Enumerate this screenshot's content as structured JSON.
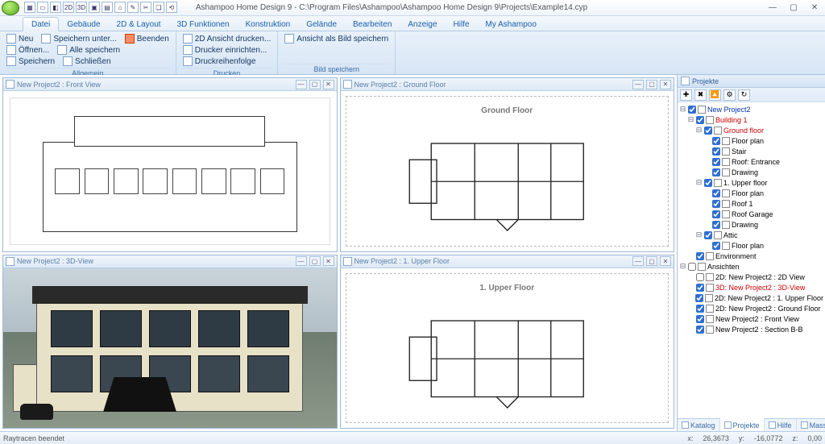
{
  "window": {
    "title": "Ashampoo Home Design 9 - C:\\Program Files\\Ashampoo\\Ashampoo Home Design 9\\Projects\\Example14.cyp"
  },
  "tabs": [
    "Datei",
    "Gebäude",
    "2D & Layout",
    "3D Funktionen",
    "Konstruktion",
    "Gelände",
    "Bearbeiten",
    "Anzeige",
    "Hilfe",
    "My Ashampoo"
  ],
  "active_tab_index": 0,
  "ribbon": {
    "groups": [
      {
        "label": "Allgemein",
        "rows": [
          [
            {
              "t": "Neu"
            },
            {
              "t": "Speichern unter..."
            },
            {
              "t": "Beenden",
              "red": true
            }
          ],
          [
            {
              "t": "Öffnen..."
            },
            {
              "t": "Alle speichern"
            }
          ],
          [
            {
              "t": "Speichern"
            },
            {
              "t": "Schließen"
            }
          ]
        ]
      },
      {
        "label": "Drucken",
        "rows": [
          [
            {
              "t": "2D Ansicht drucken..."
            }
          ],
          [
            {
              "t": "Drucker einrichten..."
            }
          ],
          [
            {
              "t": "Druckreihenfolge"
            }
          ]
        ]
      },
      {
        "label": "Bild speichern",
        "rows": [
          [
            {
              "t": "Ansicht als Bild speichern"
            }
          ]
        ]
      }
    ]
  },
  "views": [
    {
      "title": "New Project2 : Front View",
      "kind": "elevation"
    },
    {
      "title": "New Project2 : Ground Floor",
      "kind": "plan",
      "plan_title": "Ground Floor"
    },
    {
      "title": "New Project2 : 3D-View",
      "kind": "render"
    },
    {
      "title": "New Project2 : 1. Upper Floor",
      "kind": "plan",
      "plan_title": "1. Upper Floor"
    }
  ],
  "side": {
    "title": "Projekte",
    "toolbar_icons": [
      "✚",
      "✖",
      "🔼",
      "⚙",
      "↻"
    ],
    "tree": [
      {
        "d": 0,
        "l": "New Project2",
        "cls": "root",
        "c": true,
        "tw": "⊟"
      },
      {
        "d": 1,
        "l": "Building 1",
        "cls": "red",
        "c": true,
        "tw": "⊟"
      },
      {
        "d": 2,
        "l": "Ground floor",
        "cls": "red",
        "c": true,
        "tw": "⊟"
      },
      {
        "d": 3,
        "l": "Floor plan",
        "c": true,
        "tw": ""
      },
      {
        "d": 3,
        "l": "Stair",
        "c": true,
        "tw": ""
      },
      {
        "d": 3,
        "l": "Roof: Entrance",
        "c": true,
        "tw": ""
      },
      {
        "d": 3,
        "l": "Drawing",
        "c": true,
        "tw": ""
      },
      {
        "d": 2,
        "l": "1. Upper floor",
        "c": true,
        "tw": "⊟"
      },
      {
        "d": 3,
        "l": "Floor plan",
        "c": true,
        "tw": ""
      },
      {
        "d": 3,
        "l": "Roof 1",
        "c": true,
        "tw": ""
      },
      {
        "d": 3,
        "l": "Roof Garage",
        "c": true,
        "tw": ""
      },
      {
        "d": 3,
        "l": "Drawing",
        "c": true,
        "tw": ""
      },
      {
        "d": 2,
        "l": "Attic",
        "c": true,
        "tw": "⊟"
      },
      {
        "d": 3,
        "l": "Floor plan",
        "c": true,
        "tw": ""
      },
      {
        "d": 1,
        "l": "Environment",
        "c": true,
        "tw": ""
      },
      {
        "d": 0,
        "l": "Ansichten",
        "c": false,
        "tw": "⊟"
      },
      {
        "d": 1,
        "l": "New Project2 : 2D View",
        "pre": "2D:",
        "c": false,
        "tw": ""
      },
      {
        "d": 1,
        "l": "New Project2 : 3D-View",
        "pre": "3D:",
        "cls": "red",
        "c": true,
        "tw": ""
      },
      {
        "d": 1,
        "l": "New Project2 : 1. Upper Floor",
        "pre": "2D:",
        "c": true,
        "tw": ""
      },
      {
        "d": 1,
        "l": "New Project2 : Ground Floor",
        "pre": "2D:",
        "c": true,
        "tw": ""
      },
      {
        "d": 1,
        "l": "New Project2 : Front View",
        "c": true,
        "tw": ""
      },
      {
        "d": 1,
        "l": "New Project2 : Section B-B",
        "c": true,
        "tw": ""
      }
    ],
    "bottom_tabs": [
      "Katalog",
      "Projekte",
      "Hilfe",
      "Massenermittlung"
    ],
    "bottom_active": 1
  },
  "status": {
    "left": "Raytracen beendet",
    "x_label": "x:",
    "x": "26,3673",
    "y_label": "y:",
    "y": "-16,0772",
    "z_label": "z:",
    "z": "0,00"
  },
  "colors": {
    "accent": "#2f6fd1",
    "ribbon_top": "#e9f1fa",
    "ribbon_bottom": "#d6e5f5",
    "border": "#a9c1dc"
  }
}
